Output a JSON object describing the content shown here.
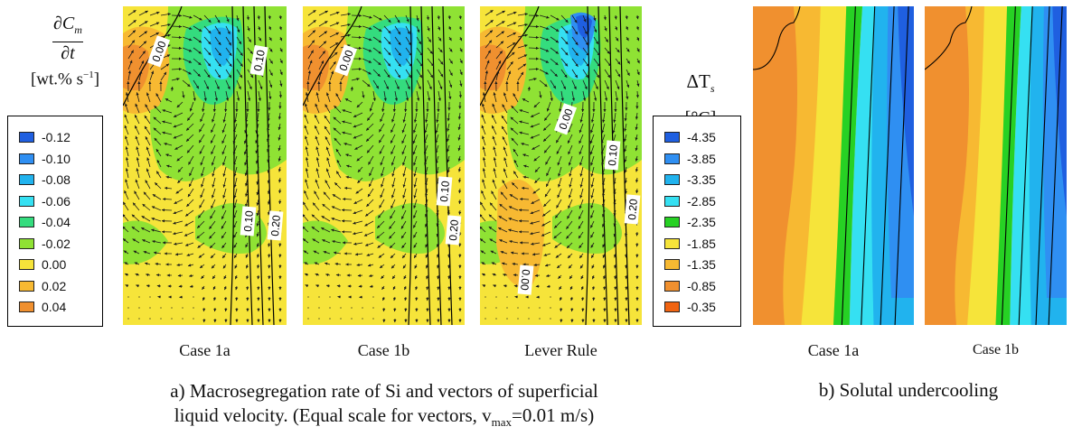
{
  "left_colorbar": {
    "numerator": "∂C",
    "numerator_sub": "m",
    "denominator": "∂t",
    "unit_open": "[wt.% s",
    "unit_exp": "−1",
    "unit_close": "]",
    "items": [
      {
        "label": "-0.12",
        "color": "#1f5fe0"
      },
      {
        "label": "-0.10",
        "color": "#2f8ff2"
      },
      {
        "label": "-0.08",
        "color": "#21b3ee"
      },
      {
        "label": "-0.06",
        "color": "#35e0f2"
      },
      {
        "label": "-0.04",
        "color": "#34dc7e"
      },
      {
        "label": "-0.02",
        "color": "#8fe234"
      },
      {
        "label": "0.00",
        "color": "#f6e43a"
      },
      {
        "label": "0.02",
        "color": "#f7b932"
      },
      {
        "label": "0.04",
        "color": "#f0902f"
      }
    ]
  },
  "right_colorbar": {
    "symbol": "ΔT",
    "symbol_sub": "s",
    "unit": "[°C]",
    "items": [
      {
        "label": "-4.35",
        "color": "#1f5fe0"
      },
      {
        "label": "-3.85",
        "color": "#2f8ff2"
      },
      {
        "label": "-3.35",
        "color": "#21b3ee"
      },
      {
        "label": "-2.85",
        "color": "#35e0f2"
      },
      {
        "label": "-2.35",
        "color": "#27d124"
      },
      {
        "label": "-1.85",
        "color": "#f6e43a"
      },
      {
        "label": "-1.35",
        "color": "#f7b932"
      },
      {
        "label": "-0.85",
        "color": "#f0902f"
      },
      {
        "label": "-0.35",
        "color": "#f06412"
      }
    ]
  },
  "panels_a": [
    {
      "caption": "Case 1a",
      "contour_labels": [
        "0.00",
        "0.10",
        "0.10",
        "0.20"
      ]
    },
    {
      "caption": "Case 1b",
      "contour_labels": [
        "0.00",
        "0.10",
        "0.20"
      ]
    },
    {
      "caption": "Lever Rule",
      "contour_labels": [
        "0.00",
        "0.10",
        "0.20",
        "0.00"
      ]
    }
  ],
  "panels_b": [
    {
      "caption": "Case 1a"
    },
    {
      "caption": "Case 1b"
    }
  ],
  "caption_a": {
    "line1": "a) Macrosegregation rate of Si and vectors of superficial",
    "line2_prefix": "liquid velocity. (Equal scale for vectors, v",
    "line2_sub": "max",
    "line2_suffix": "=0.01 m/s)"
  },
  "caption_b": "b) Solutal undercooling"
}
